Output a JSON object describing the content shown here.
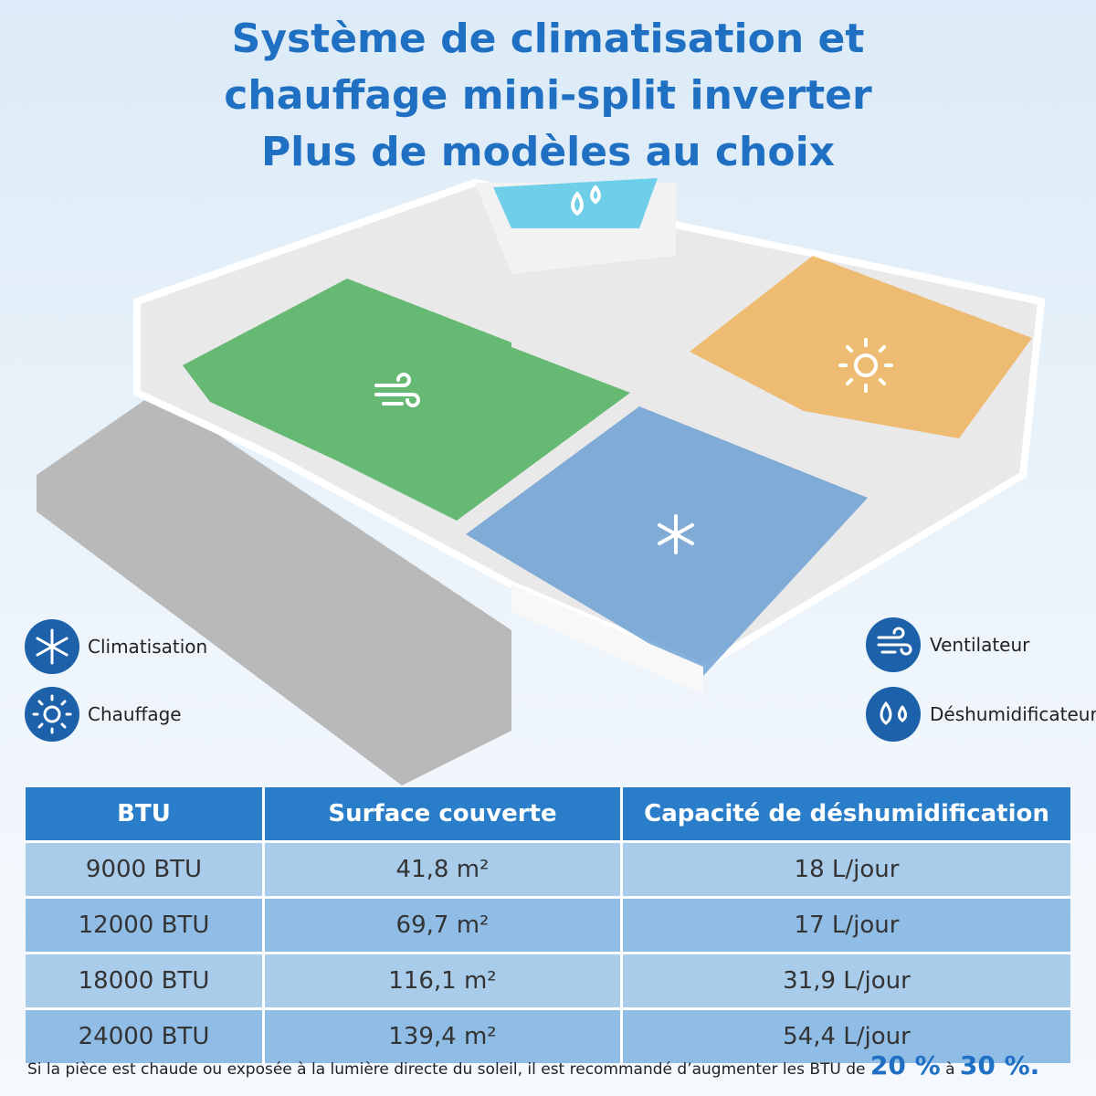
{
  "header": {
    "title_lines": [
      "Système de climatisation et",
      "chauffage mini-split inverter",
      "Plus de modèles au choix"
    ]
  },
  "legend": {
    "left": [
      "Climatisation",
      "Chauffage"
    ],
    "right": [
      "Ventilateur",
      "Déshumidificateur"
    ]
  },
  "table": {
    "header": [
      "BTU",
      "Surface couverte",
      "Capacité de déshumidification"
    ],
    "rows": [
      [
        "9000 BTU",
        "41,8 m²",
        "18 L/jour"
      ],
      [
        "12000 BTU",
        "69,7 m²",
        "17 L/jour"
      ],
      [
        "18000 BTU",
        "116,1 m²",
        "31,9 L/jour"
      ],
      [
        "24000 BTU",
        "139,4 m²",
        "54,4 L/jour"
      ]
    ]
  },
  "footnote": {
    "text": "Si la pièce est chaude ou exposée à la lumière directe du soleil, il est recommandé d’augmenter les BTU de",
    "low": "20 %",
    "joiner": "à",
    "high": "30 %."
  }
}
